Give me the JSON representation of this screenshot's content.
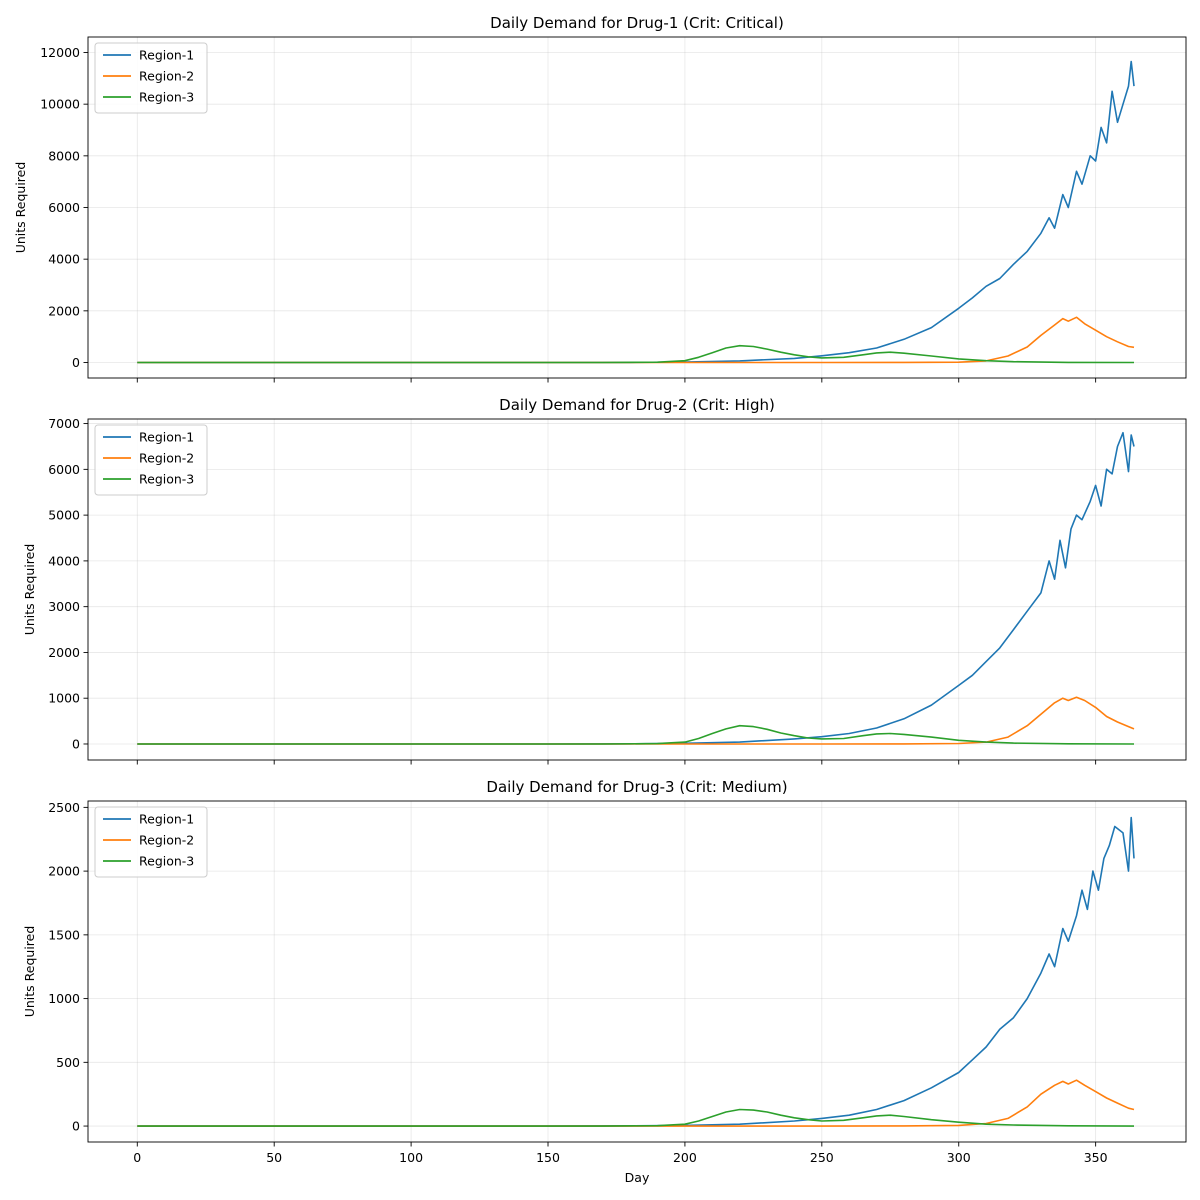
{
  "chart_data": [
    {
      "type": "line",
      "title": "Daily Demand for Drug-1 (Crit: Critical)",
      "xlabel": "",
      "ylabel": "Units Required",
      "xlim": [
        -18,
        383
      ],
      "ylim": [
        -600,
        12600
      ],
      "xticks": [
        0,
        50,
        100,
        150,
        200,
        250,
        300,
        350
      ],
      "show_x_tick_labels": false,
      "yticks": [
        0,
        2000,
        4000,
        6000,
        8000,
        10000,
        12000
      ],
      "grid": true,
      "legend": "upper-left",
      "series": [
        {
          "name": "Region-1",
          "color": "#1f77b4",
          "points": [
            [
              0,
              0
            ],
            [
              150,
              0
            ],
            [
              180,
              5
            ],
            [
              200,
              20
            ],
            [
              220,
              60
            ],
            [
              240,
              160
            ],
            [
              250,
              260
            ],
            [
              260,
              380
            ],
            [
              270,
              560
            ],
            [
              280,
              900
            ],
            [
              290,
              1350
            ],
            [
              300,
              2100
            ],
            [
              305,
              2500
            ],
            [
              310,
              2950
            ],
            [
              315,
              3250
            ],
            [
              320,
              3800
            ],
            [
              325,
              4300
            ],
            [
              330,
              5000
            ],
            [
              333,
              5600
            ],
            [
              335,
              5200
            ],
            [
              338,
              6500
            ],
            [
              340,
              6000
            ],
            [
              343,
              7400
            ],
            [
              345,
              6900
            ],
            [
              348,
              8000
            ],
            [
              350,
              7800
            ],
            [
              352,
              9100
            ],
            [
              354,
              8500
            ],
            [
              356,
              10500
            ],
            [
              358,
              9300
            ],
            [
              360,
              10000
            ],
            [
              362,
              10700
            ],
            [
              363,
              11650
            ],
            [
              364,
              10700
            ]
          ]
        },
        {
          "name": "Region-2",
          "color": "#ff7f0e",
          "points": [
            [
              0,
              0
            ],
            [
              250,
              0
            ],
            [
              280,
              2
            ],
            [
              300,
              10
            ],
            [
              310,
              60
            ],
            [
              318,
              250
            ],
            [
              325,
              600
            ],
            [
              330,
              1050
            ],
            [
              335,
              1450
            ],
            [
              338,
              1700
            ],
            [
              340,
              1600
            ],
            [
              343,
              1750
            ],
            [
              346,
              1500
            ],
            [
              350,
              1250
            ],
            [
              354,
              1000
            ],
            [
              358,
              800
            ],
            [
              362,
              620
            ],
            [
              364,
              590
            ]
          ]
        },
        {
          "name": "Region-3",
          "color": "#2ca02c",
          "points": [
            [
              0,
              0
            ],
            [
              170,
              0
            ],
            [
              190,
              10
            ],
            [
              200,
              70
            ],
            [
              205,
              200
            ],
            [
              210,
              380
            ],
            [
              215,
              560
            ],
            [
              220,
              650
            ],
            [
              225,
              620
            ],
            [
              230,
              520
            ],
            [
              235,
              400
            ],
            [
              240,
              300
            ],
            [
              245,
              220
            ],
            [
              250,
              180
            ],
            [
              258,
              200
            ],
            [
              265,
              300
            ],
            [
              270,
              370
            ],
            [
              275,
              400
            ],
            [
              280,
              360
            ],
            [
              290,
              250
            ],
            [
              300,
              140
            ],
            [
              310,
              70
            ],
            [
              320,
              30
            ],
            [
              340,
              5
            ],
            [
              364,
              0
            ]
          ]
        }
      ]
    },
    {
      "type": "line",
      "title": "Daily Demand for Drug-2 (Crit: High)",
      "xlabel": "",
      "ylabel": "Units Required",
      "xlim": [
        -18,
        383
      ],
      "ylim": [
        -350,
        7100
      ],
      "xticks": [
        0,
        50,
        100,
        150,
        200,
        250,
        300,
        350
      ],
      "show_x_tick_labels": false,
      "yticks": [
        0,
        1000,
        2000,
        3000,
        4000,
        5000,
        6000,
        7000
      ],
      "grid": true,
      "legend": "upper-left",
      "series": [
        {
          "name": "Region-1",
          "color": "#1f77b4",
          "points": [
            [
              0,
              0
            ],
            [
              150,
              0
            ],
            [
              180,
              5
            ],
            [
              200,
              15
            ],
            [
              220,
              40
            ],
            [
              240,
              110
            ],
            [
              250,
              160
            ],
            [
              260,
              230
            ],
            [
              270,
              350
            ],
            [
              280,
              550
            ],
            [
              290,
              850
            ],
            [
              300,
              1280
            ],
            [
              305,
              1500
            ],
            [
              310,
              1800
            ],
            [
              315,
              2100
            ],
            [
              320,
              2500
            ],
            [
              325,
              2900
            ],
            [
              330,
              3300
            ],
            [
              333,
              4000
            ],
            [
              335,
              3600
            ],
            [
              337,
              4450
            ],
            [
              339,
              3850
            ],
            [
              341,
              4700
            ],
            [
              343,
              5000
            ],
            [
              345,
              4900
            ],
            [
              348,
              5300
            ],
            [
              350,
              5650
            ],
            [
              352,
              5200
            ],
            [
              354,
              6000
            ],
            [
              356,
              5900
            ],
            [
              358,
              6500
            ],
            [
              360,
              6800
            ],
            [
              362,
              5950
            ],
            [
              363,
              6750
            ],
            [
              364,
              6500
            ]
          ]
        },
        {
          "name": "Region-2",
          "color": "#ff7f0e",
          "points": [
            [
              0,
              0
            ],
            [
              250,
              0
            ],
            [
              280,
              2
            ],
            [
              300,
              10
            ],
            [
              310,
              40
            ],
            [
              318,
              150
            ],
            [
              325,
              400
            ],
            [
              330,
              650
            ],
            [
              335,
              900
            ],
            [
              338,
              1000
            ],
            [
              340,
              950
            ],
            [
              343,
              1020
            ],
            [
              346,
              950
            ],
            [
              350,
              800
            ],
            [
              354,
              600
            ],
            [
              358,
              480
            ],
            [
              362,
              380
            ],
            [
              364,
              330
            ]
          ]
        },
        {
          "name": "Region-3",
          "color": "#2ca02c",
          "points": [
            [
              0,
              0
            ],
            [
              170,
              0
            ],
            [
              190,
              8
            ],
            [
              200,
              40
            ],
            [
              205,
              120
            ],
            [
              210,
              230
            ],
            [
              215,
              330
            ],
            [
              220,
              400
            ],
            [
              225,
              380
            ],
            [
              230,
              320
            ],
            [
              235,
              240
            ],
            [
              240,
              180
            ],
            [
              245,
              130
            ],
            [
              250,
              110
            ],
            [
              258,
              120
            ],
            [
              265,
              180
            ],
            [
              270,
              220
            ],
            [
              275,
              230
            ],
            [
              280,
              210
            ],
            [
              290,
              150
            ],
            [
              300,
              80
            ],
            [
              310,
              40
            ],
            [
              320,
              20
            ],
            [
              340,
              5
            ],
            [
              364,
              0
            ]
          ]
        }
      ]
    },
    {
      "type": "line",
      "title": "Daily Demand for Drug-3 (Crit: Medium)",
      "xlabel": "Day",
      "ylabel": "Units Required",
      "xlim": [
        -18,
        383
      ],
      "ylim": [
        -125,
        2550
      ],
      "xticks": [
        0,
        50,
        100,
        150,
        200,
        250,
        300,
        350
      ],
      "show_x_tick_labels": true,
      "yticks": [
        0,
        500,
        1000,
        1500,
        2000,
        2500
      ],
      "grid": true,
      "legend": "upper-left",
      "series": [
        {
          "name": "Region-1",
          "color": "#1f77b4",
          "points": [
            [
              0,
              0
            ],
            [
              150,
              0
            ],
            [
              180,
              2
            ],
            [
              200,
              5
            ],
            [
              220,
              15
            ],
            [
              240,
              40
            ],
            [
              250,
              60
            ],
            [
              260,
              85
            ],
            [
              270,
              130
            ],
            [
              280,
              200
            ],
            [
              290,
              300
            ],
            [
              300,
              420
            ],
            [
              305,
              520
            ],
            [
              310,
              620
            ],
            [
              315,
              760
            ],
            [
              320,
              850
            ],
            [
              325,
              1000
            ],
            [
              330,
              1200
            ],
            [
              333,
              1350
            ],
            [
              335,
              1250
            ],
            [
              338,
              1550
            ],
            [
              340,
              1450
            ],
            [
              343,
              1650
            ],
            [
              345,
              1850
            ],
            [
              347,
              1700
            ],
            [
              349,
              2000
            ],
            [
              351,
              1850
            ],
            [
              353,
              2100
            ],
            [
              355,
              2200
            ],
            [
              357,
              2350
            ],
            [
              360,
              2300
            ],
            [
              362,
              2000
            ],
            [
              363,
              2420
            ],
            [
              364,
              2100
            ]
          ]
        },
        {
          "name": "Region-2",
          "color": "#ff7f0e",
          "points": [
            [
              0,
              0
            ],
            [
              250,
              0
            ],
            [
              280,
              1
            ],
            [
              300,
              5
            ],
            [
              310,
              20
            ],
            [
              318,
              60
            ],
            [
              325,
              150
            ],
            [
              330,
              250
            ],
            [
              335,
              320
            ],
            [
              338,
              350
            ],
            [
              340,
              330
            ],
            [
              343,
              360
            ],
            [
              346,
              320
            ],
            [
              350,
              270
            ],
            [
              354,
              220
            ],
            [
              358,
              180
            ],
            [
              362,
              140
            ],
            [
              364,
              130
            ]
          ]
        },
        {
          "name": "Region-3",
          "color": "#2ca02c",
          "points": [
            [
              0,
              0
            ],
            [
              170,
              0
            ],
            [
              190,
              3
            ],
            [
              200,
              15
            ],
            [
              205,
              40
            ],
            [
              210,
              75
            ],
            [
              215,
              110
            ],
            [
              220,
              130
            ],
            [
              225,
              125
            ],
            [
              230,
              110
            ],
            [
              235,
              85
            ],
            [
              240,
              65
            ],
            [
              245,
              50
            ],
            [
              250,
              40
            ],
            [
              258,
              45
            ],
            [
              265,
              65
            ],
            [
              270,
              80
            ],
            [
              275,
              85
            ],
            [
              280,
              75
            ],
            [
              290,
              50
            ],
            [
              300,
              30
            ],
            [
              310,
              15
            ],
            [
              320,
              8
            ],
            [
              340,
              2
            ],
            [
              364,
              0
            ]
          ]
        }
      ]
    }
  ]
}
